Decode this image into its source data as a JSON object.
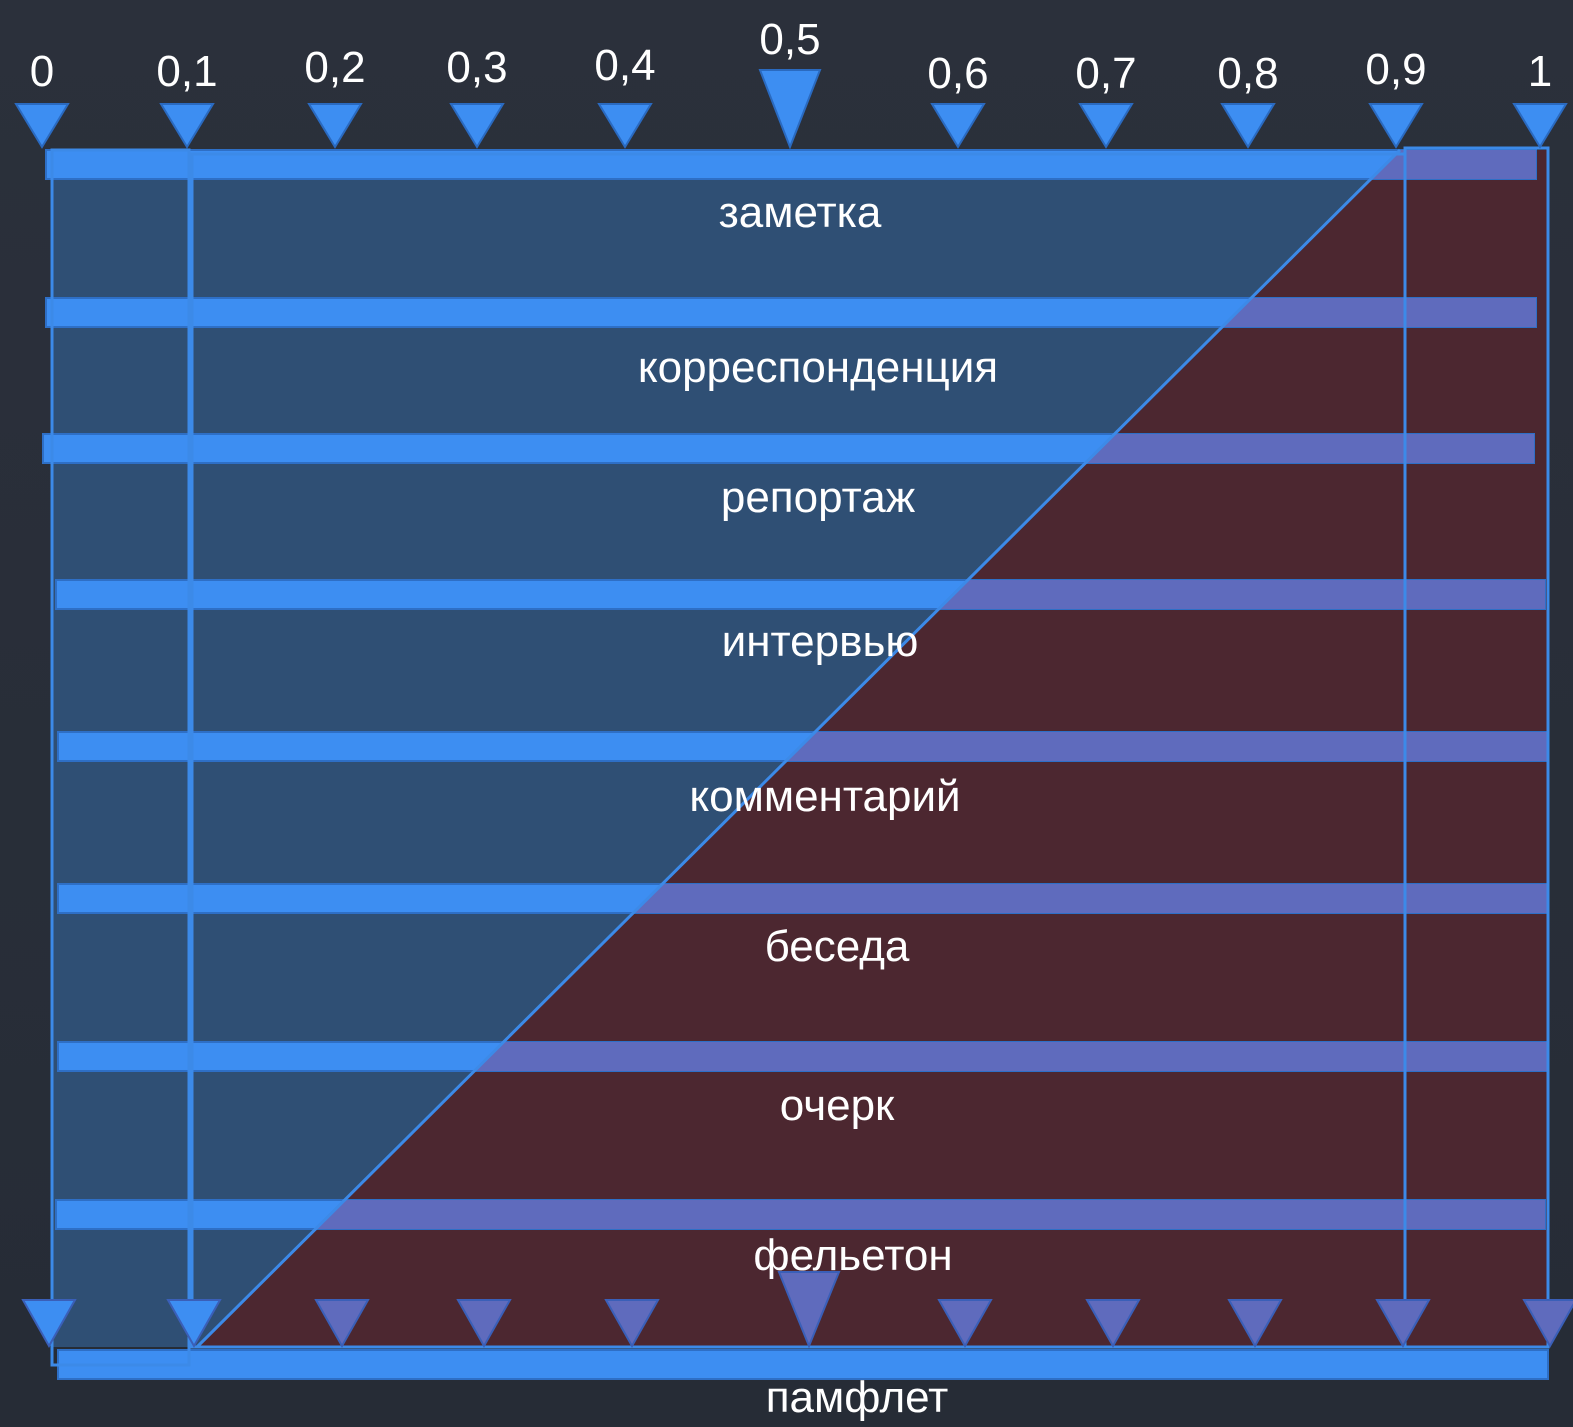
{
  "colors": {
    "background": "#2a2f39",
    "bar_blue": "#3d8ef2",
    "bar_over_red": "#5f6bbd",
    "left_region": "#2f4f74",
    "right_region": "#4c2730",
    "outline": "#3c8ae8",
    "text": "#ffffff"
  },
  "scale": {
    "labels": [
      "0",
      "0,1",
      "0,2",
      "0,3",
      "0,4",
      "0,5",
      "0,6",
      "0,7",
      "0,8",
      "0,9",
      "1"
    ]
  },
  "genres": [
    {
      "label": "заметка"
    },
    {
      "label": "корреспонденция"
    },
    {
      "label": "репортаж"
    },
    {
      "label": "интервью"
    },
    {
      "label": "комментарий"
    },
    {
      "label": "беседа"
    },
    {
      "label": "очерк"
    },
    {
      "label": "фельетон"
    },
    {
      "label": "памфлет"
    }
  ]
}
